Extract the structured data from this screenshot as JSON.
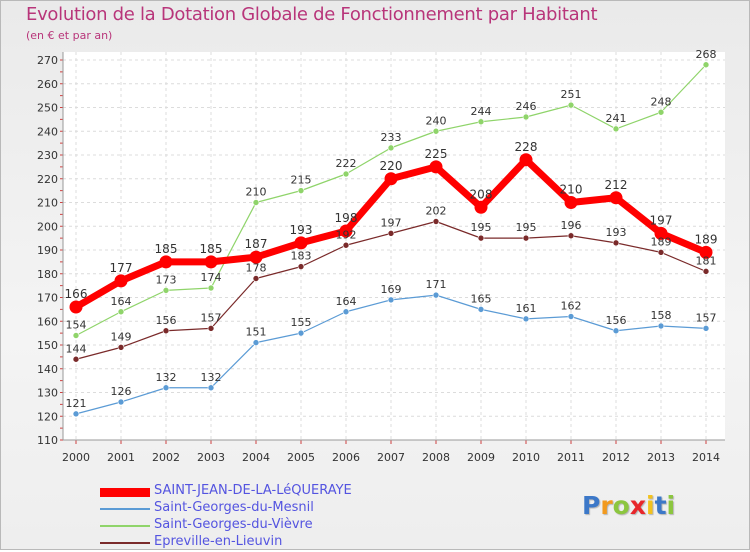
{
  "title": "Evolution de la Dotation Globale de Fonctionnement par Habitant",
  "subtitle": "(en € et par an)",
  "logo": {
    "p": "P",
    "r": "r",
    "o": "o",
    "x": "x",
    "i": "i",
    "t": "t",
    "i2": "i"
  },
  "chart_data": {
    "type": "line",
    "x": [
      2000,
      2001,
      2002,
      2003,
      2004,
      2005,
      2006,
      2007,
      2008,
      2009,
      2010,
      2011,
      2012,
      2013,
      2014
    ],
    "ylim": [
      110,
      270
    ],
    "yticks": [
      110,
      120,
      130,
      140,
      150,
      160,
      170,
      180,
      190,
      200,
      210,
      220,
      230,
      240,
      250,
      260,
      270
    ],
    "grid": true,
    "legend_position": "bottom-left",
    "series": [
      {
        "name": "SAINT-JEAN-DE-LA-LéQUERAYE",
        "color": "#ff0000",
        "values": [
          166,
          177,
          185,
          185,
          187,
          193,
          198,
          220,
          225,
          208,
          228,
          210,
          212,
          197,
          189
        ]
      },
      {
        "name": "Saint-Georges-du-Mesnil",
        "color": "#5b9bd5",
        "values": [
          121,
          126,
          132,
          132,
          151,
          155,
          164,
          169,
          171,
          165,
          161,
          162,
          156,
          158,
          157
        ]
      },
      {
        "name": "Saint-Georges-du-Vièvre",
        "color": "#8fd46a",
        "values": [
          154,
          164,
          173,
          174,
          210,
          215,
          222,
          233,
          240,
          244,
          246,
          251,
          241,
          248,
          268
        ]
      },
      {
        "name": "Epreville-en-Lieuvin",
        "color": "#7a2a2a",
        "values": [
          144,
          149,
          156,
          157,
          178,
          183,
          192,
          197,
          202,
          195,
          195,
          196,
          193,
          189,
          181
        ]
      }
    ]
  }
}
